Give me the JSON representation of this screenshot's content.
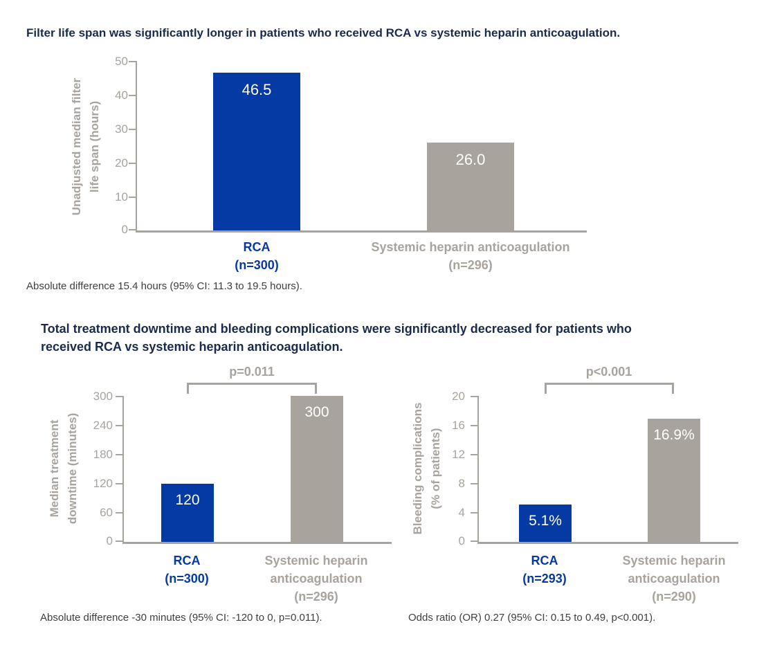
{
  "colors": {
    "background": "#ffffff",
    "heading_navy": "#1b2a4c",
    "bar_blue": "#0539a4",
    "bar_gray": "#a8a39d",
    "axis_gray": "#a8a39d",
    "value_label_white": "#ffffff",
    "footnote_gray": "#3e3e3e"
  },
  "sections": [
    {
      "heading": "Filter life span was significantly longer in patients who received RCA vs systemic heparin anticoagulation."
    },
    {
      "heading_line1": "Total treatment downtime and bleeding complications were significantly decreased for patients who",
      "heading_line2": "received RCA vs systemic heparin anticoagulation."
    }
  ],
  "chart_data": [
    {
      "type": "bar",
      "ylabel": "Unadjusted median filter life span (hours)",
      "ylabel_lines": [
        "Unadjusted median filter",
        "life span (hours)"
      ],
      "ylim": [
        0,
        50
      ],
      "yticks": [
        0,
        10,
        20,
        30,
        40,
        50
      ],
      "ytick_labels": [
        "0",
        "10",
        "20",
        "30",
        "40",
        "50"
      ],
      "categories": [
        "RCA (n=300)",
        "Systemic heparin anticoagulation (n=296)"
      ],
      "category_lines": [
        [
          "RCA",
          "(n=300)"
        ],
        [
          "Systemic heparin anticoagulation",
          "(n=296)"
        ]
      ],
      "values": [
        46.5,
        26.0
      ],
      "value_labels": [
        "46.5",
        "26.0"
      ],
      "bar_colors": [
        "#0539a4",
        "#a8a39d"
      ],
      "grid": false,
      "legend": "none",
      "footnote": "Absolute difference 15.4 hours (95% CI: 11.3 to 19.5 hours)."
    },
    {
      "type": "bar",
      "ylabel": "Median treatment downtime (minutes)",
      "ylabel_lines": [
        "Median treatment",
        "downtime (minutes)"
      ],
      "ylim": [
        0,
        300
      ],
      "yticks": [
        0,
        60,
        120,
        180,
        240,
        300
      ],
      "ytick_labels": [
        "0",
        "60",
        "120",
        "180",
        "240",
        "300"
      ],
      "categories": [
        "RCA (n=300)",
        "Systemic heparin anticoagulation (n=296)"
      ],
      "category_lines": [
        [
          "RCA",
          "(n=300)"
        ],
        [
          "Systemic heparin",
          "anticoagulation",
          "(n=296)"
        ]
      ],
      "values": [
        120,
        300
      ],
      "value_labels": [
        "120",
        "300"
      ],
      "bar_colors": [
        "#0539a4",
        "#a8a39d"
      ],
      "grid": false,
      "legend": "none",
      "p_label": "p=0.011",
      "footnote": "Absolute difference -30 minutes (95% CI: -120 to 0, p=0.011)."
    },
    {
      "type": "bar",
      "ylabel": "Bleeding complications (% of patients)",
      "ylabel_lines": [
        "Bleeding complications",
        "(% of patients)"
      ],
      "ylim": [
        0,
        20
      ],
      "yticks": [
        0,
        4,
        8,
        12,
        16,
        20
      ],
      "ytick_labels": [
        "0",
        "4",
        "8",
        "12",
        "16",
        "20"
      ],
      "categories": [
        "RCA (n=293)",
        "Systemic heparin anticoagulation (n=290)"
      ],
      "category_lines": [
        [
          "RCA",
          "(n=293)"
        ],
        [
          "Systemic heparin",
          "anticoagulation",
          "(n=290)"
        ]
      ],
      "values": [
        5.1,
        16.9
      ],
      "value_labels": [
        "5.1%",
        "16.9%"
      ],
      "bar_colors": [
        "#0539a4",
        "#a8a39d"
      ],
      "grid": false,
      "legend": "none",
      "p_label": "p<0.001",
      "footnote": "Odds ratio (OR) 0.27 (95% CI: 0.15 to 0.49, p<0.001)."
    }
  ]
}
